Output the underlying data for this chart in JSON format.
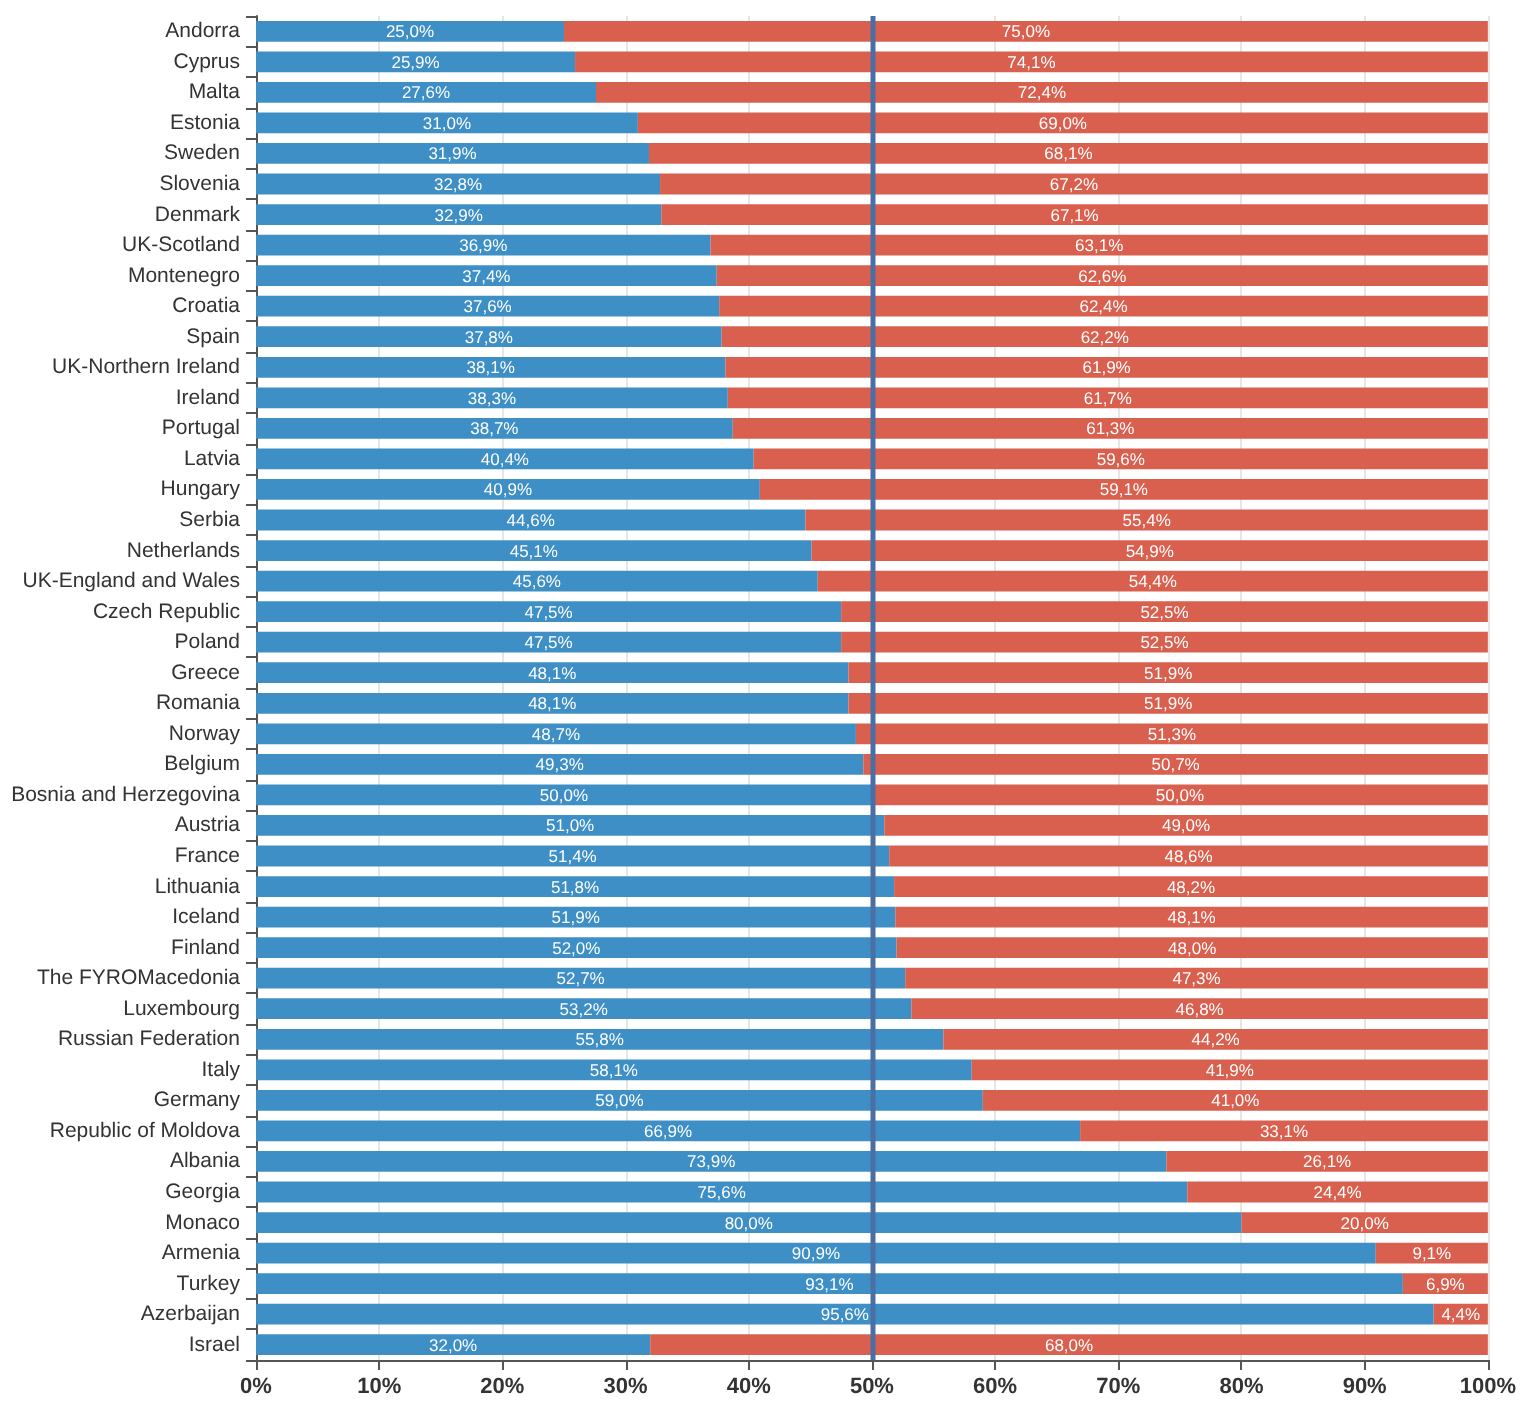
{
  "chart_data": {
    "type": "bar",
    "orientation": "horizontal",
    "stacked": true,
    "grid": "x",
    "categories": [
      "Andorra",
      "Cyprus",
      "Malta",
      "Estonia",
      "Sweden",
      "Slovenia",
      "Denmark",
      "UK-Scotland",
      "Montenegro",
      "Croatia",
      "Spain",
      "UK-Northern Ireland",
      "Ireland",
      "Portugal",
      "Latvia",
      "Hungary",
      "Serbia",
      "Netherlands",
      "UK-England and Wales",
      "Czech Republic",
      "Poland",
      "Greece",
      "Romania",
      "Norway",
      "Belgium",
      "Bosnia and Herzegovina",
      "Austria",
      "France",
      "Lithuania",
      "Iceland",
      "Finland",
      "The FYROMacedonia",
      "Luxembourg",
      "Russian Federation",
      "Italy",
      "Germany",
      "Republic of Moldova",
      "Albania",
      "Georgia",
      "Monaco",
      "Armenia",
      "Turkey",
      "Azerbaijan",
      "Israel"
    ],
    "xlim": [
      0,
      100
    ],
    "xticks": [
      {
        "value": 0,
        "label": "0%"
      },
      {
        "value": 10,
        "label": "10%"
      },
      {
        "value": 20,
        "label": "20%"
      },
      {
        "value": 30,
        "label": "30%"
      },
      {
        "value": 40,
        "label": "40%"
      },
      {
        "value": 50,
        "label": "50%"
      },
      {
        "value": 60,
        "label": "60%"
      },
      {
        "value": 70,
        "label": "70%"
      },
      {
        "value": 80,
        "label": "80%"
      },
      {
        "value": 90,
        "label": "90%"
      },
      {
        "value": 100,
        "label": "100%"
      }
    ],
    "series": [
      {
        "color": "#3d8fc6",
        "values": [
          25.0,
          25.9,
          27.6,
          31.0,
          31.9,
          32.8,
          32.9,
          36.9,
          37.4,
          37.6,
          37.8,
          38.1,
          38.3,
          38.7,
          40.4,
          40.9,
          44.6,
          45.1,
          45.6,
          47.5,
          47.5,
          48.1,
          48.1,
          48.7,
          49.3,
          50.0,
          51.0,
          51.4,
          51.8,
          51.9,
          52.0,
          52.7,
          53.2,
          55.8,
          58.1,
          59.0,
          66.9,
          73.9,
          75.6,
          80.0,
          90.9,
          93.1,
          95.6,
          32.0
        ],
        "value_labels": [
          "25,0%",
          "25,9%",
          "27,6%",
          "31,0%",
          "31,9%",
          "32,8%",
          "32,9%",
          "36,9%",
          "37,4%",
          "37,6%",
          "37,8%",
          "38,1%",
          "38,3%",
          "38,7%",
          "40,4%",
          "40,9%",
          "44,6%",
          "45,1%",
          "45,6%",
          "47,5%",
          "47,5%",
          "48,1%",
          "48,1%",
          "48,7%",
          "49,3%",
          "50,0%",
          "51,0%",
          "51,4%",
          "51,8%",
          "51,9%",
          "52,0%",
          "52,7%",
          "53,2%",
          "55,8%",
          "58,1%",
          "59,0%",
          "66,9%",
          "73,9%",
          "75,6%",
          "80,0%",
          "90,9%",
          "93,1%",
          "95,6%",
          "32,0%"
        ]
      },
      {
        "color": "#d9604e",
        "values": [
          75.0,
          74.1,
          72.4,
          69.0,
          68.1,
          67.2,
          67.1,
          63.1,
          62.6,
          62.4,
          62.2,
          61.9,
          61.7,
          61.3,
          59.6,
          59.1,
          55.4,
          54.9,
          54.4,
          52.5,
          52.5,
          51.9,
          51.9,
          51.3,
          50.7,
          50.0,
          49.0,
          48.6,
          48.2,
          48.1,
          48.0,
          47.3,
          46.8,
          44.2,
          41.9,
          41.0,
          33.1,
          26.1,
          24.4,
          20.0,
          9.1,
          6.9,
          4.4,
          68.0
        ],
        "value_labels": [
          "75,0%",
          "74,1%",
          "72,4%",
          "69,0%",
          "68,1%",
          "67,2%",
          "67,1%",
          "63,1%",
          "62,6%",
          "62,4%",
          "62,2%",
          "61,9%",
          "61,7%",
          "61,3%",
          "59,6%",
          "59,1%",
          "55,4%",
          "54,9%",
          "54,4%",
          "52,5%",
          "52,5%",
          "51,9%",
          "51,9%",
          "51,3%",
          "50,7%",
          "50,0%",
          "49,0%",
          "48,6%",
          "48,2%",
          "48,1%",
          "48,0%",
          "47,3%",
          "46,8%",
          "44,2%",
          "41,9%",
          "41,0%",
          "33,1%",
          "26,1%",
          "24,4%",
          "20,0%",
          "9,1%",
          "6,9%",
          "4,4%",
          "68,0%"
        ]
      }
    ],
    "ref_lines": [
      {
        "axis": "x",
        "value": 50,
        "color": "#4a6fa5"
      }
    ]
  }
}
